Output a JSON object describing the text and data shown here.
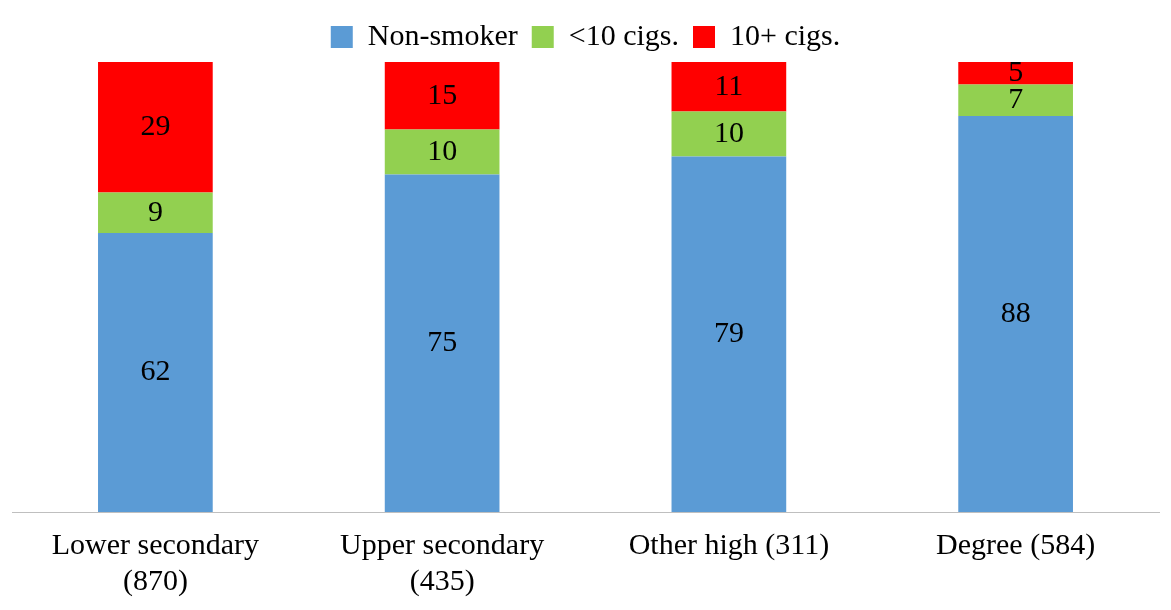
{
  "chart_data": {
    "type": "bar",
    "stacked": true,
    "categories": [
      "Lower secondary (870)",
      "Upper secondary (435)",
      "Other high (311)",
      "Degree (584)"
    ],
    "series": [
      {
        "name": "Non-smoker",
        "color": "#5b9bd5",
        "values": [
          62,
          75,
          79,
          88
        ]
      },
      {
        "name": "<10 cigs.",
        "color": "#92d050",
        "values": [
          9,
          10,
          10,
          7
        ]
      },
      {
        "name": "10+ cigs.",
        "color": "#ff0000",
        "values": [
          29,
          15,
          11,
          5
        ]
      }
    ],
    "ylim": [
      0,
      100
    ],
    "data_labels": true,
    "legend": "top",
    "grid": false
  }
}
